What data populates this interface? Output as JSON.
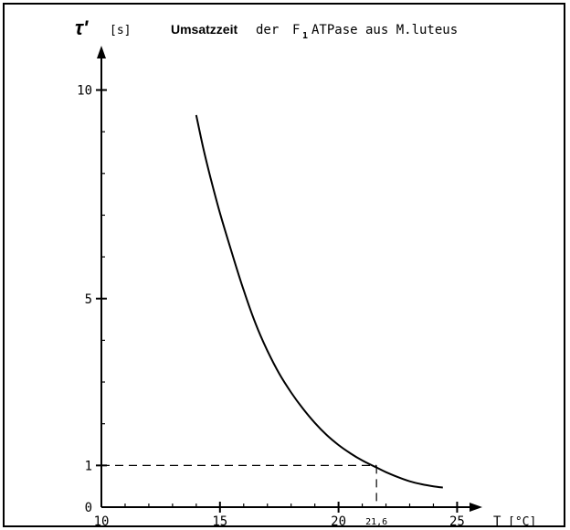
{
  "chart_data": {
    "type": "line",
    "title_bold": "Umsatzzeit",
    "title_rest": "der",
    "title_f": "F",
    "title_sub": "1",
    "title_tail": "ATPase aus M.luteus",
    "ylabel_symbol": "τ'",
    "ylabel_unit": "[s]",
    "xlabel": "T",
    "xlabel_unit": "[°C]",
    "xlim": [
      10,
      25.6
    ],
    "ylim": [
      0,
      10.8
    ],
    "x_ticks": [
      10,
      15,
      20,
      25
    ],
    "y_ticks": [
      0,
      1,
      5,
      10
    ],
    "marker_x": 21.6,
    "marker_x_label": "21,6",
    "marker_y": 1,
    "series": [
      {
        "x": [
          14.0,
          14.3,
          14.6,
          15.0,
          15.5,
          16.0,
          16.5,
          17.0,
          17.5,
          18.0,
          18.5,
          19.0,
          19.5,
          20.0,
          20.5,
          21.0,
          21.6,
          22.0,
          22.5,
          23.0,
          23.5,
          24.0,
          24.4
        ],
        "y": [
          9.4,
          8.6,
          7.9,
          7.05,
          6.1,
          5.2,
          4.4,
          3.75,
          3.2,
          2.75,
          2.36,
          2.02,
          1.73,
          1.49,
          1.29,
          1.12,
          0.95,
          0.84,
          0.72,
          0.62,
          0.55,
          0.5,
          0.47
        ]
      }
    ]
  }
}
